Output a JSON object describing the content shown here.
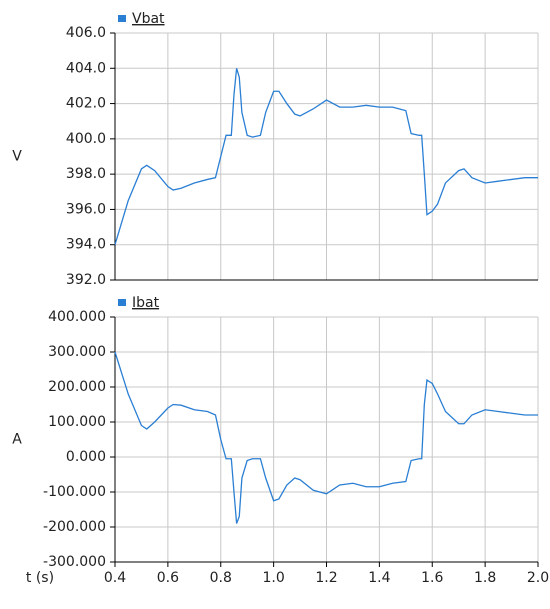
{
  "chart_data": [
    {
      "type": "line",
      "ylabel": "V",
      "x": [
        0.4,
        0.45,
        0.5,
        0.52,
        0.55,
        0.6,
        0.62,
        0.65,
        0.7,
        0.75,
        0.78,
        0.8,
        0.82,
        0.84,
        0.85,
        0.86,
        0.87,
        0.88,
        0.9,
        0.92,
        0.95,
        0.97,
        1.0,
        1.02,
        1.05,
        1.08,
        1.1,
        1.15,
        1.2,
        1.25,
        1.3,
        1.35,
        1.4,
        1.45,
        1.5,
        1.52,
        1.55,
        1.56,
        1.57,
        1.58,
        1.6,
        1.62,
        1.65,
        1.7,
        1.72,
        1.75,
        1.8,
        1.85,
        1.9,
        1.95,
        2.0
      ],
      "series": [
        {
          "name": "Vbat",
          "color": "#2a7fd4",
          "values": [
            394.0,
            396.5,
            398.3,
            398.5,
            398.2,
            397.3,
            397.1,
            397.2,
            397.5,
            397.7,
            397.8,
            399.0,
            400.2,
            400.2,
            402.5,
            404.0,
            403.5,
            401.5,
            400.2,
            400.1,
            400.2,
            401.5,
            402.7,
            402.7,
            402.0,
            401.4,
            401.3,
            401.7,
            402.2,
            401.8,
            401.8,
            401.9,
            401.8,
            401.8,
            401.6,
            400.3,
            400.2,
            400.2,
            398.0,
            395.7,
            395.9,
            396.3,
            397.5,
            398.2,
            398.3,
            397.8,
            397.5,
            397.6,
            397.7,
            397.8,
            397.8
          ]
        }
      ],
      "xlim": [
        0.4,
        2.0
      ],
      "ylim": [
        392,
        406
      ],
      "yticks": [
        {
          "value": 392,
          "label": "392.0"
        },
        {
          "value": 394,
          "label": "394.0"
        },
        {
          "value": 396,
          "label": "396.0"
        },
        {
          "value": 398,
          "label": "398.0"
        },
        {
          "value": 400,
          "label": "400.0"
        },
        {
          "value": 402,
          "label": "402.0"
        },
        {
          "value": 404,
          "label": "404.0"
        },
        {
          "value": 406,
          "label": "406.0"
        }
      ],
      "grid": true,
      "legend": "top-left"
    },
    {
      "type": "line",
      "ylabel": "A",
      "xlabel": "t (s)",
      "x": [
        0.4,
        0.45,
        0.5,
        0.52,
        0.55,
        0.6,
        0.62,
        0.65,
        0.7,
        0.75,
        0.78,
        0.8,
        0.82,
        0.84,
        0.85,
        0.86,
        0.87,
        0.88,
        0.9,
        0.92,
        0.95,
        0.97,
        1.0,
        1.02,
        1.05,
        1.08,
        1.1,
        1.15,
        1.2,
        1.25,
        1.3,
        1.35,
        1.4,
        1.45,
        1.5,
        1.52,
        1.55,
        1.56,
        1.57,
        1.58,
        1.6,
        1.62,
        1.65,
        1.7,
        1.72,
        1.75,
        1.8,
        1.85,
        1.9,
        1.95,
        2.0
      ],
      "series": [
        {
          "name": "Ibat",
          "color": "#2a7fd4",
          "values": [
            300,
            180,
            90,
            80,
            100,
            140,
            150,
            148,
            135,
            130,
            120,
            50,
            -5,
            -5,
            -100,
            -190,
            -170,
            -60,
            -10,
            -5,
            -5,
            -60,
            -125,
            -120,
            -80,
            -60,
            -65,
            -95,
            -105,
            -80,
            -75,
            -85,
            -85,
            -75,
            -70,
            -10,
            -5,
            -5,
            150,
            220,
            210,
            180,
            130,
            95,
            95,
            120,
            135,
            130,
            125,
            120,
            120
          ]
        }
      ],
      "xlim": [
        0.4,
        2.0
      ],
      "xticks": [
        0.4,
        0.6,
        0.8,
        {
          "value": 1.0,
          "label": "1.0"
        },
        1.2,
        1.4,
        1.6,
        1.8,
        {
          "value": 2.0,
          "label": "2.0"
        }
      ],
      "ylim": [
        -300,
        400
      ],
      "yticks": [
        {
          "value": -300,
          "label": "-300.000"
        },
        {
          "value": -200,
          "label": "-200.000"
        },
        {
          "value": -100,
          "label": "-100.000"
        },
        {
          "value": 0,
          "label": "0.000"
        },
        {
          "value": 100,
          "label": "100.000"
        },
        {
          "value": 200,
          "label": "200.000"
        },
        {
          "value": 300,
          "label": "300.000"
        },
        {
          "value": 400,
          "label": "400.000"
        }
      ],
      "grid": true,
      "legend": "top-left"
    }
  ]
}
